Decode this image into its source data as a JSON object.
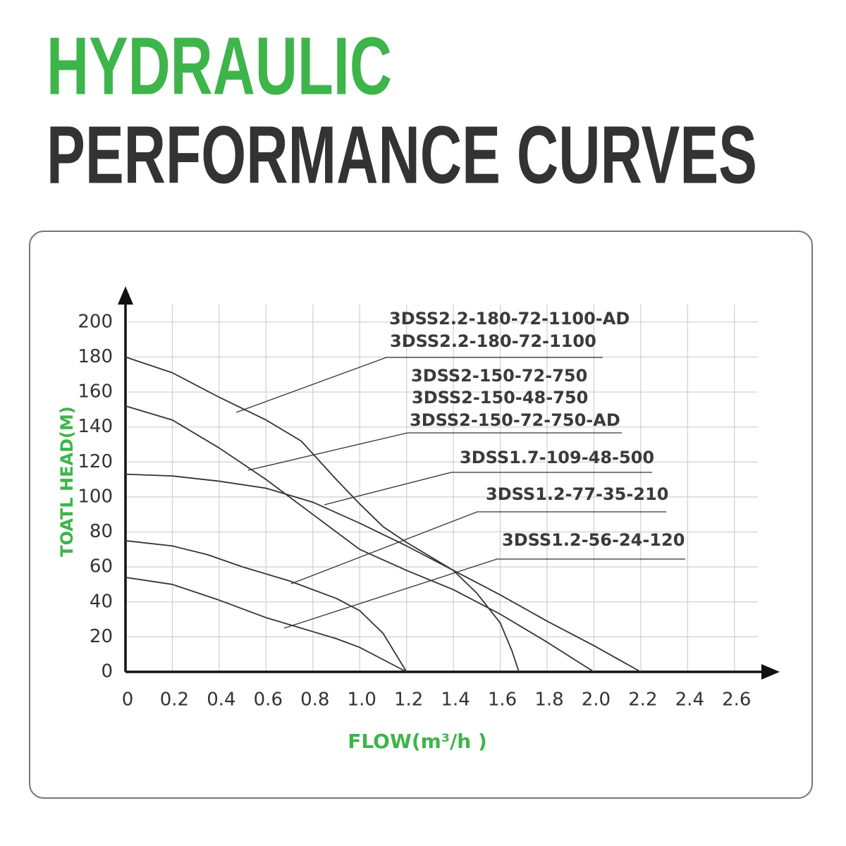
{
  "chart_data": {
    "type": "line",
    "title": "HYDRAULIC",
    "subtitle": "PERFORMANCE CURVES",
    "x_label": "FLOW(m³/h )",
    "y_label": "TOATL HEAD(M)",
    "xlim": [
      0,
      2.7
    ],
    "ylim": [
      0,
      210
    ],
    "xticks": [
      0,
      0.2,
      0.4,
      0.6,
      0.8,
      {
        "value": 1,
        "label": "1.0"
      },
      1.2,
      1.4,
      1.6,
      1.8,
      {
        "value": 2,
        "label": "2.0"
      },
      2.2,
      2.4,
      2.6
    ],
    "yticks": [
      0,
      20,
      40,
      60,
      80,
      100,
      120,
      140,
      160,
      180,
      200
    ],
    "grid": true,
    "color": "#333333",
    "series": [
      {
        "x": [
          0,
          0.2,
          0.4,
          0.6,
          0.75,
          0.9,
          1.0,
          1.1,
          1.2,
          1.4,
          1.5,
          1.6,
          1.65,
          1.68
        ],
        "values": [
          180,
          171,
          157,
          144,
          132,
          110,
          96,
          83,
          74,
          58,
          45,
          28,
          12,
          0
        ]
      },
      {
        "x": [
          0,
          0.2,
          0.4,
          0.6,
          0.8,
          1.0,
          1.2,
          1.4,
          1.6,
          1.8,
          2.0
        ],
        "values": [
          152,
          144,
          128,
          110,
          90,
          70,
          58,
          47,
          33,
          17,
          0
        ]
      },
      {
        "x": [
          0,
          0.2,
          0.4,
          0.6,
          0.8,
          1.0,
          1.2,
          1.4,
          1.6,
          1.8,
          2.0,
          2.2
        ],
        "values": [
          113,
          112,
          109,
          105,
          97,
          85,
          72,
          58,
          44,
          29,
          15,
          0
        ]
      },
      {
        "x": [
          0,
          0.2,
          0.35,
          0.5,
          0.7,
          0.9,
          1.0,
          1.1,
          1.2
        ],
        "values": [
          75,
          72,
          67,
          60,
          52,
          42,
          35,
          22,
          0
        ]
      },
      {
        "x": [
          0,
          0.2,
          0.4,
          0.6,
          0.8,
          0.9,
          1.0,
          1.1,
          1.2
        ],
        "values": [
          54,
          50,
          41,
          31,
          23,
          19,
          14,
          7,
          0
        ]
      }
    ],
    "annotations": [
      "3DSS2.2-180-72-1100-AD",
      "3DSS2.2-180-72-1100",
      "3DSS2-150-72-750",
      "3DSS2-150-48-750",
      "3DSS2-150-72-750-AD",
      "3DSS1.7-109-48-500",
      "3DSS1.2-77-35-210",
      "3DSS1.2-56-24-120"
    ]
  }
}
